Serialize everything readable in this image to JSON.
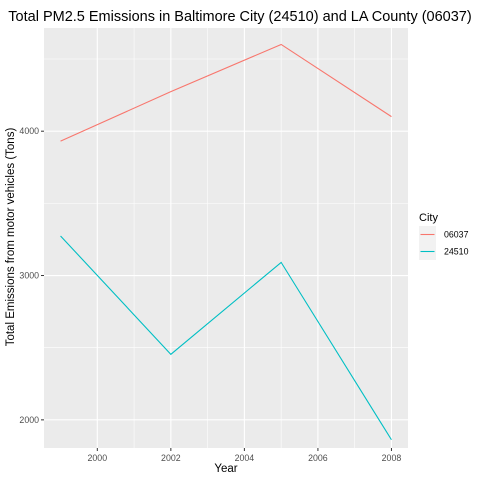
{
  "chart_data": {
    "type": "line",
    "title": "Total PM2.5 Emissions in Baltimore City (24510) and LA County (06037)",
    "xlabel": "Year",
    "ylabel": "Total Emissions from motor vehicles (Tons)",
    "x": [
      1999,
      2002,
      2005,
      2008
    ],
    "xlim": [
      1998.55,
      2008.45
    ],
    "ylim": [
      1805,
      4715
    ],
    "x_ticks": [
      "2000",
      "2002",
      "2004",
      "2006",
      "2008"
    ],
    "y_ticks": [
      "2000",
      "3000",
      "4000"
    ],
    "grid": true,
    "legend_title": "City",
    "legend_position": "right",
    "series": [
      {
        "name": "06037",
        "color": "#F8766D",
        "values": [
          3931,
          4274,
          4601,
          4101
        ]
      },
      {
        "name": "24510",
        "color": "#00BFC4",
        "values": [
          3274,
          2454,
          3091,
          1862
        ]
      }
    ]
  },
  "colors": {
    "panel_background": "#EBEBEB",
    "grid_major": "#FFFFFF",
    "legend_key_background": "#F2F2F2"
  }
}
